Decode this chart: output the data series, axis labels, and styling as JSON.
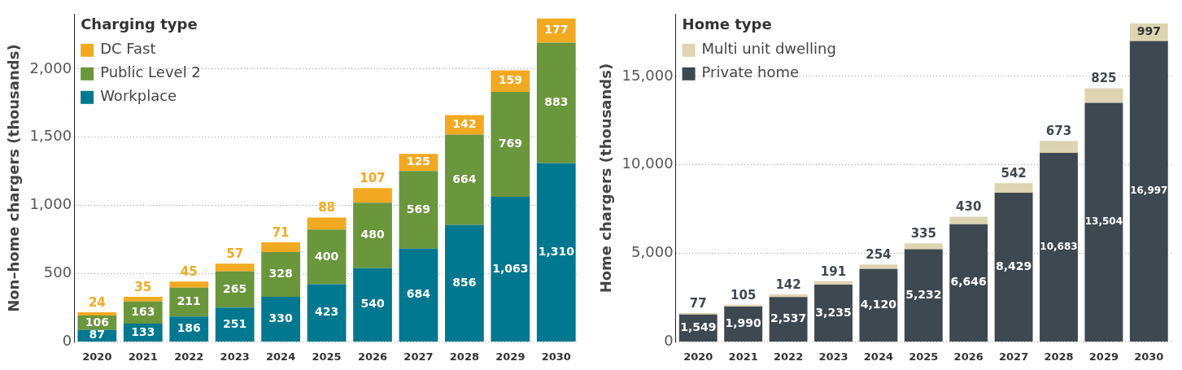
{
  "chart_data": [
    {
      "type": "bar",
      "stacked": true,
      "ylabel": "Non–home chargers (thousands)",
      "legend_title": "Charging type",
      "legend": "top left",
      "grid": "y",
      "categories": [
        "2020",
        "2021",
        "2022",
        "2023",
        "2024",
        "2025",
        "2026",
        "2027",
        "2028",
        "2029",
        "2030"
      ],
      "ylim": [
        0,
        2400
      ],
      "yticks": [
        0,
        {
          "value": 500,
          "label": "500"
        },
        {
          "value": 1000,
          "label": "1,000"
        },
        {
          "value": 1500,
          "label": "1,500"
        },
        {
          "value": 2000,
          "label": "2,000"
        }
      ],
      "series": [
        {
          "name": "Workplace",
          "color": "#00788f",
          "values": [
            87,
            133,
            186,
            251,
            330,
            423,
            540,
            684,
            856,
            1063,
            1310
          ],
          "value_labels": [
            "87",
            "133",
            "186",
            "251",
            "330",
            "423",
            "540",
            "684",
            "856",
            "1,063",
            "1,310"
          ]
        },
        {
          "name": "Public Level 2",
          "color": "#6a963c",
          "values": [
            106,
            163,
            211,
            265,
            328,
            400,
            480,
            569,
            664,
            769,
            883
          ],
          "value_labels": [
            "106",
            "163",
            "211",
            "265",
            "328",
            "400",
            "480",
            "569",
            "664",
            "769",
            "883"
          ]
        },
        {
          "name": "DC Fast",
          "color": "#f2a922",
          "values": [
            24,
            35,
            45,
            57,
            71,
            88,
            107,
            125,
            142,
            159,
            177
          ],
          "value_labels": [
            "24",
            "35",
            "45",
            "57",
            "71",
            "88",
            "107",
            "125",
            "142",
            "159",
            "177"
          ]
        }
      ]
    },
    {
      "type": "bar",
      "stacked": true,
      "ylabel": "Home chargers (thousands)",
      "legend_title": "Home type",
      "legend": "top left",
      "grid": "y",
      "categories": [
        "2020",
        "2021",
        "2022",
        "2023",
        "2024",
        "2025",
        "2026",
        "2027",
        "2028",
        "2029",
        "2030"
      ],
      "ylim": [
        0,
        18500
      ],
      "yticks": [
        0,
        {
          "value": 5000,
          "label": "5,000"
        },
        {
          "value": 10000,
          "label": "10,000"
        },
        {
          "value": 15000,
          "label": "15,000"
        }
      ],
      "series": [
        {
          "name": "Private home",
          "color": "#3e4850",
          "values": [
            1549,
            1990,
            2537,
            3235,
            4120,
            5232,
            6646,
            8429,
            10683,
            13504,
            16997
          ],
          "value_labels": [
            "1,549",
            "1,990",
            "2,537",
            "3,235",
            "4,120",
            "5,232",
            "6,646",
            "8,429",
            "10,683",
            "13,504",
            "16,997"
          ]
        },
        {
          "name": "Multi unit dwelling",
          "color": "#ddd4b2",
          "values": [
            77,
            105,
            142,
            191,
            254,
            335,
            430,
            542,
            673,
            825,
            997
          ],
          "value_labels": [
            "77",
            "105",
            "142",
            "191",
            "254",
            "335",
            "430",
            "542",
            "673",
            "825",
            "997"
          ]
        }
      ]
    }
  ]
}
